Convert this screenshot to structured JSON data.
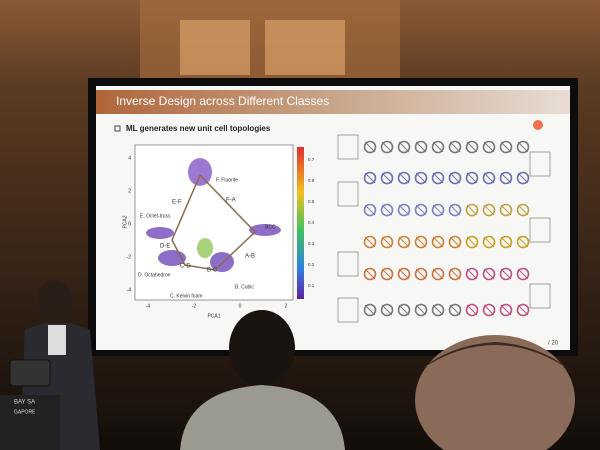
{
  "slide": {
    "title": "Inverse Design across Different Classes",
    "bullet": "ML generates new unit cell topologies",
    "plot": {
      "x_label": "PCA1",
      "y_label": "PCA2",
      "x_ticks": [
        -4,
        -2,
        0,
        2
      ],
      "y_ticks": [
        4,
        2,
        0,
        -2,
        -4
      ],
      "colorbar_ticks": [
        0.7,
        0.6,
        0.5,
        0.4,
        0.3,
        0.2,
        0.1
      ],
      "classes": [
        "F. Fluorite",
        "E. Octet-truss",
        "BCC",
        "D. Octahedron",
        "C. Kelvin foam",
        "B. Cubic"
      ],
      "paths": [
        "E-F",
        "F-A",
        "D-E",
        "C-D",
        "B-C",
        "A-B"
      ]
    },
    "page_number": "/ 20"
  },
  "banner": [
    "BAY SA",
    "GAPORE"
  ]
}
